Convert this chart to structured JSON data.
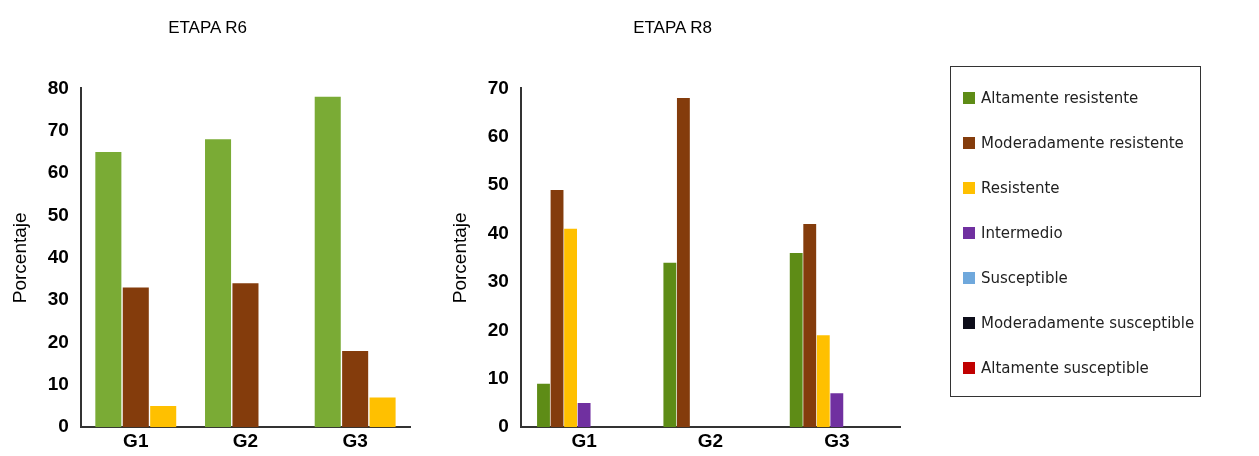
{
  "chart_data": [
    {
      "type": "bar",
      "title": "ETAPA R6",
      "ylabel": "Porcentaje",
      "categories": [
        "G1",
        "G2",
        "G3"
      ],
      "ylim": [
        0,
        80
      ],
      "yticks": [
        0,
        10,
        20,
        30,
        40,
        50,
        60,
        70,
        80
      ],
      "grid": false,
      "legend": false,
      "series": [
        {
          "color": "#7aab35",
          "values": [
            65,
            68,
            78
          ]
        },
        {
          "color": "#843c0c",
          "values": [
            33,
            34,
            18
          ]
        },
        {
          "color": "#ffc000",
          "values": [
            5,
            0,
            7
          ]
        }
      ]
    },
    {
      "type": "bar",
      "title": "ETAPA R8",
      "ylabel": "Porcentaje",
      "categories": [
        "G1",
        "G2",
        "G3"
      ],
      "ylim": [
        0,
        70
      ],
      "yticks": [
        0,
        10,
        20,
        30,
        40,
        50,
        60,
        70
      ],
      "grid": false,
      "legend": "right",
      "series": [
        {
          "name": "Altamente resistente",
          "color": "#5e8c16",
          "values": [
            9,
            34,
            36
          ]
        },
        {
          "name": "Moderadamente resistente",
          "color": "#843c0c",
          "values": [
            49,
            68,
            42
          ]
        },
        {
          "name": "Resistente",
          "color": "#ffc000",
          "values": [
            41,
            0,
            19
          ]
        },
        {
          "name": "Intermedio",
          "color": "#7030a0",
          "values": [
            5,
            0,
            7
          ]
        },
        {
          "name": "Susceptible",
          "color": "#6fa8dc",
          "values": [
            null,
            null,
            null
          ]
        },
        {
          "name": "Moderadamente susceptible",
          "color": "#0d0d1a",
          "values": [
            null,
            null,
            null
          ]
        },
        {
          "name": "Altamente susceptible",
          "color": "#c00000",
          "values": [
            null,
            null,
            null
          ]
        }
      ]
    }
  ]
}
